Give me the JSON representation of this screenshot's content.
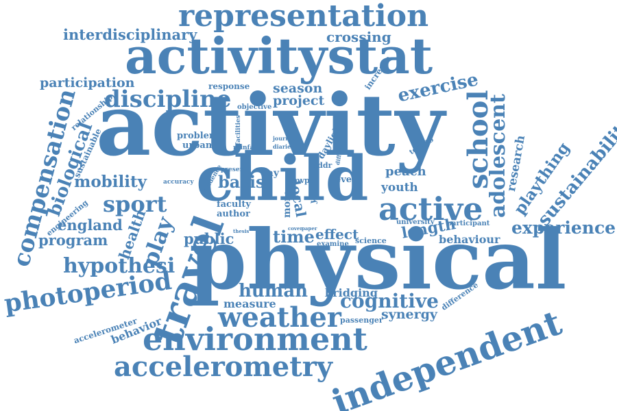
{
  "cloud": {
    "color": "#4a82b6",
    "words": [
      {
        "text": "representation"
      },
      {
        "text": "interdisciplinary"
      },
      {
        "text": "crossing"
      },
      {
        "text": "activitystat"
      },
      {
        "text": "participation"
      },
      {
        "text": "response"
      },
      {
        "text": "season"
      },
      {
        "text": "discipline"
      },
      {
        "text": "project"
      },
      {
        "text": "increase"
      },
      {
        "text": "exercise"
      },
      {
        "text": "objective"
      },
      {
        "text": "relationship"
      },
      {
        "text": "activity"
      },
      {
        "text": "school"
      },
      {
        "text": "adolescent"
      },
      {
        "text": "research"
      },
      {
        "text": "compensation"
      },
      {
        "text": "biological"
      },
      {
        "text": "sustainable"
      },
      {
        "text": "problem"
      },
      {
        "text": "urban"
      },
      {
        "text": "facilities"
      },
      {
        "text": "rainfall"
      },
      {
        "text": "journey"
      },
      {
        "text": "diaries"
      },
      {
        "text": "daylight"
      },
      {
        "text": "different"
      },
      {
        "text": "testing"
      },
      {
        "text": "sustainability"
      },
      {
        "text": "plaything"
      },
      {
        "text": "engineering"
      },
      {
        "text": "mobility"
      },
      {
        "text": "child"
      },
      {
        "text": "day"
      },
      {
        "text": "addr"
      },
      {
        "text": "mvpa"
      },
      {
        "text": "level"
      },
      {
        "text": "peach"
      },
      {
        "text": "youth"
      },
      {
        "text": "sport"
      },
      {
        "text": "accuracy"
      },
      {
        "text": "basis"
      },
      {
        "text": "evidence"
      },
      {
        "text": "present"
      },
      {
        "text": "active"
      },
      {
        "text": "faculty"
      },
      {
        "text": "author"
      },
      {
        "text": "more"
      },
      {
        "text": "year"
      },
      {
        "text": "local"
      },
      {
        "text": "england"
      },
      {
        "text": "program"
      },
      {
        "text": "health"
      },
      {
        "text": "play"
      },
      {
        "text": "travel"
      },
      {
        "text": "university"
      },
      {
        "text": "participant"
      },
      {
        "text": "experience"
      },
      {
        "text": "length"
      },
      {
        "text": "behaviour"
      },
      {
        "text": "public"
      },
      {
        "text": "time"
      },
      {
        "text": "effect"
      },
      {
        "text": "science"
      },
      {
        "text": "examine"
      },
      {
        "text": "hypothesi"
      },
      {
        "text": "physical"
      },
      {
        "text": "photoperiod"
      },
      {
        "text": "human"
      },
      {
        "text": "measure"
      },
      {
        "text": "bridging"
      },
      {
        "text": "cognitive"
      },
      {
        "text": "difference"
      },
      {
        "text": "weather"
      },
      {
        "text": "synergy"
      },
      {
        "text": "passenger"
      },
      {
        "text": "independent"
      },
      {
        "text": "accelerometer"
      },
      {
        "text": "behavior"
      },
      {
        "text": "environment"
      },
      {
        "text": "accelerometry"
      },
      {
        "text": "thesis"
      },
      {
        "text": "cover"
      },
      {
        "text": "paper"
      }
    ]
  }
}
